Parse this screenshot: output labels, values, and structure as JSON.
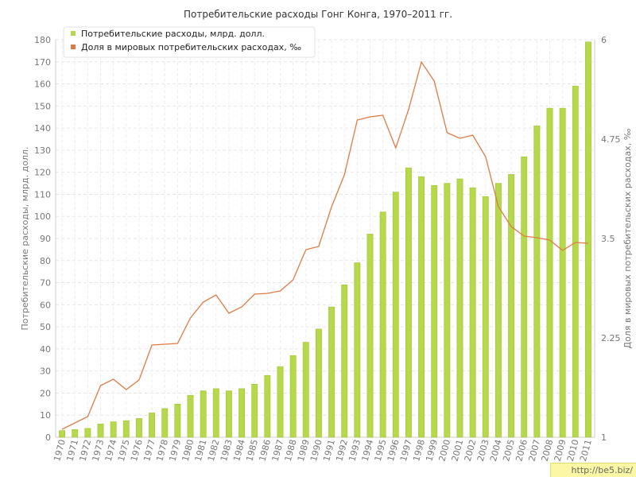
{
  "chart_data": {
    "type": "bar",
    "title": "Потребительские расходы Гонг Конга, 1970–2011 гг.",
    "ylabel_left": "Потребительские расходы, млрд. долл.",
    "ylabel_right": "Доля в мировых потребительских расходах, ‰",
    "ylim_left": [
      0,
      180
    ],
    "ylim_right": [
      1,
      6
    ],
    "yticks_left": [
      0,
      10,
      20,
      30,
      40,
      50,
      60,
      70,
      80,
      90,
      100,
      110,
      120,
      130,
      140,
      150,
      160,
      170,
      180
    ],
    "yticks_right": [
      "1",
      "2.25",
      "3.5",
      "4.75",
      "6"
    ],
    "yticks_right_values": [
      1,
      2.25,
      3.5,
      4.75,
      6
    ],
    "grid": true,
    "legend_position": "top-left",
    "categories": [
      "1970",
      "1971",
      "1972",
      "1973",
      "1974",
      "1975",
      "1976",
      "1977",
      "1978",
      "1979",
      "1980",
      "1981",
      "1982",
      "1983",
      "1984",
      "1985",
      "1986",
      "1987",
      "1988",
      "1989",
      "1990",
      "1991",
      "1992",
      "1993",
      "1994",
      "1995",
      "1996",
      "1997",
      "1998",
      "1999",
      "2000",
      "2001",
      "2002",
      "2003",
      "2004",
      "2005",
      "2006",
      "2007",
      "2008",
      "2009",
      "2010",
      "2011"
    ],
    "series": [
      {
        "name": "Потребительские расходы, млрд. долл.",
        "type": "bar",
        "axis": "left",
        "color": "#b5d94a",
        "values": [
          3,
          3.5,
          4,
          6,
          7,
          7.5,
          8.5,
          11,
          13,
          15,
          19,
          21,
          22,
          21,
          22,
          24,
          28,
          32,
          37,
          43,
          49,
          59,
          69,
          79,
          92,
          102,
          111,
          122,
          118,
          114,
          115,
          117,
          113,
          109,
          115,
          119,
          127,
          141,
          149,
          149,
          159,
          179
        ]
      },
      {
        "name": "Доля в мировых потребительских расходах, ‰",
        "type": "line",
        "axis": "right",
        "color": "#e07a45",
        "values": [
          1.1,
          1.18,
          1.26,
          1.65,
          1.73,
          1.6,
          1.72,
          2.16,
          2.17,
          2.18,
          2.5,
          2.7,
          2.79,
          2.56,
          2.64,
          2.8,
          2.81,
          2.84,
          2.98,
          3.36,
          3.4,
          3.9,
          4.3,
          4.99,
          5.03,
          5.05,
          4.64,
          5.12,
          5.72,
          5.48,
          4.83,
          4.76,
          4.8,
          4.53,
          3.9,
          3.65,
          3.53,
          3.51,
          3.48,
          3.35,
          3.45,
          3.44
        ]
      }
    ]
  },
  "watermark": "http://be5.biz/"
}
